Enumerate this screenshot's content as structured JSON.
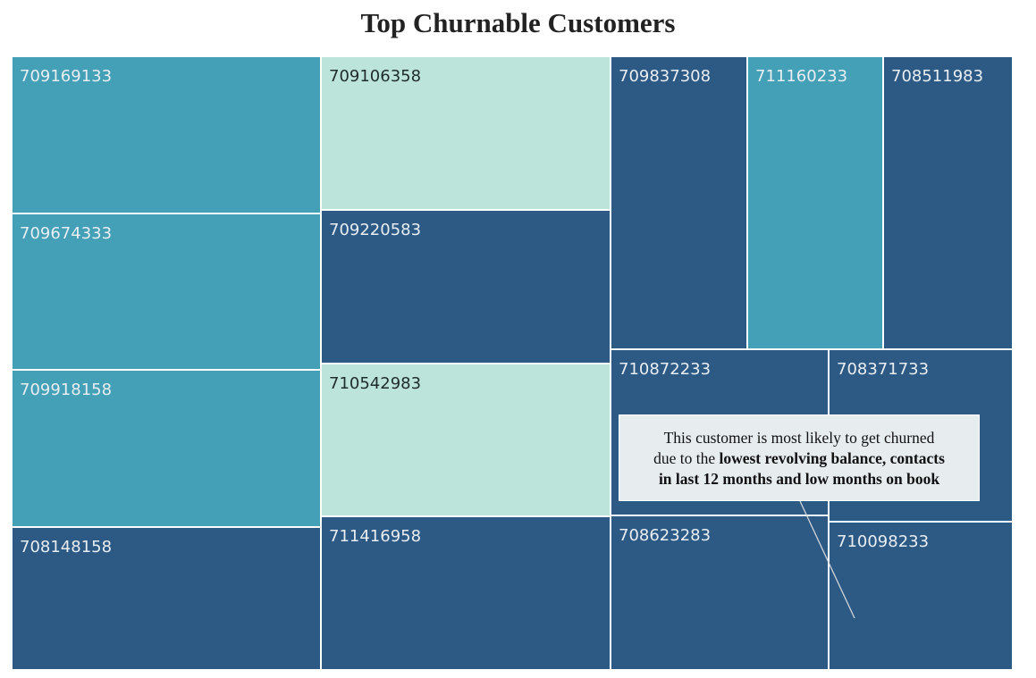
{
  "chart_data": {
    "type": "treemap",
    "title": "Top Churnable Customers",
    "colors": {
      "teal": "#44a0b7",
      "mint": "#bde4da",
      "navy": "#2d5985",
      "border": "#ffffff",
      "label_light": "#e8eef2",
      "label_dark": "#1f2d2a"
    },
    "tiles": [
      {
        "id": "709169133",
        "color": "teal"
      },
      {
        "id": "709674333",
        "color": "teal"
      },
      {
        "id": "709918158",
        "color": "teal"
      },
      {
        "id": "708148158",
        "color": "navy"
      },
      {
        "id": "709106358",
        "color": "mint"
      },
      {
        "id": "709220583",
        "color": "navy"
      },
      {
        "id": "710542983",
        "color": "mint"
      },
      {
        "id": "711416958",
        "color": "navy"
      },
      {
        "id": "709837308",
        "color": "navy"
      },
      {
        "id": "711160233",
        "color": "teal"
      },
      {
        "id": "708511983",
        "color": "navy"
      },
      {
        "id": "710872233",
        "color": "navy"
      },
      {
        "id": "708371733",
        "color": "navy"
      },
      {
        "id": "708623283",
        "color": "navy"
      },
      {
        "id": "710098233",
        "color": "navy"
      }
    ],
    "annotation": {
      "target": "710098233",
      "line1": "This customer is most likely to get churned",
      "line2_plain": "due to the ",
      "line2_bold": "lowest revolving balance, contacts",
      "line3_bold": "in last 12 months and low months on book"
    }
  }
}
